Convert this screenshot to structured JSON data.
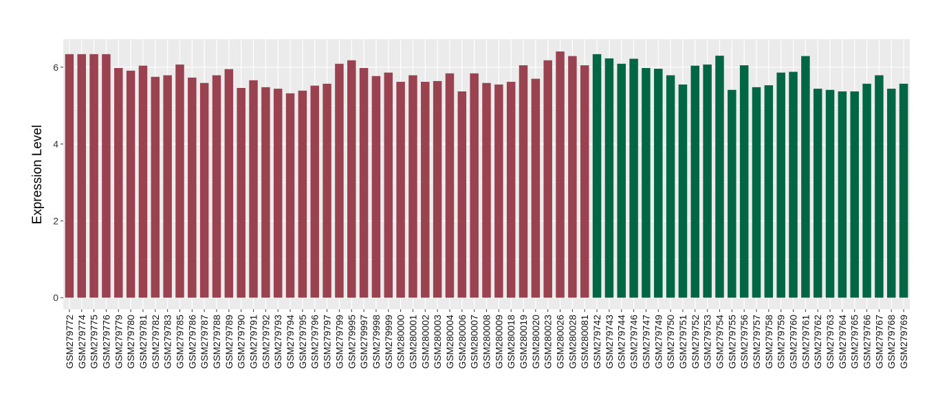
{
  "chart_data": {
    "type": "bar",
    "title": "",
    "xlabel": "",
    "ylabel": "Expression Level",
    "ylim": [
      -0.3,
      6.73
    ],
    "yticks": [
      0,
      2,
      4,
      6
    ],
    "grid": true,
    "legend": "none",
    "colors": {
      "group1": "#9B4250",
      "group2": "#006644",
      "panel": "#EBEBEB",
      "gridline": "#FFFFFF"
    },
    "categories": [
      "GSM279772",
      "GSM279774",
      "GSM279775",
      "GSM279776",
      "GSM279779",
      "GSM279780",
      "GSM279781",
      "GSM279782",
      "GSM279783",
      "GSM279785",
      "GSM279786",
      "GSM279787",
      "GSM279788",
      "GSM279789",
      "GSM279790",
      "GSM279791",
      "GSM279792",
      "GSM279793",
      "GSM279794",
      "GSM279795",
      "GSM279796",
      "GSM279797",
      "GSM279799",
      "GSM279995",
      "GSM279997",
      "GSM279998",
      "GSM279999",
      "GSM280000",
      "GSM280001",
      "GSM280002",
      "GSM280003",
      "GSM280004",
      "GSM280006",
      "GSM280007",
      "GSM280008",
      "GSM280009",
      "GSM280018",
      "GSM280019",
      "GSM280020",
      "GSM280023",
      "GSM280026",
      "GSM280028",
      "GSM280081",
      "GSM279742",
      "GSM279743",
      "GSM279744",
      "GSM279746",
      "GSM279747",
      "GSM279749",
      "GSM279750",
      "GSM279751",
      "GSM279752",
      "GSM279753",
      "GSM279754",
      "GSM279755",
      "GSM279756",
      "GSM279757",
      "GSM279758",
      "GSM279759",
      "GSM279760",
      "GSM279761",
      "GSM279762",
      "GSM279763",
      "GSM279764",
      "GSM279765",
      "GSM279766",
      "GSM279767",
      "GSM279768",
      "GSM279769"
    ],
    "values": [
      6.34,
      6.34,
      6.34,
      6.34,
      5.98,
      5.91,
      6.04,
      5.75,
      5.79,
      6.07,
      5.73,
      5.59,
      5.79,
      5.95,
      5.46,
      5.66,
      5.48,
      5.44,
      5.32,
      5.39,
      5.52,
      5.57,
      6.09,
      6.18,
      5.98,
      5.77,
      5.86,
      5.62,
      5.79,
      5.62,
      5.64,
      5.84,
      5.37,
      5.84,
      5.59,
      5.55,
      5.62,
      6.05,
      5.7,
      6.18,
      6.41,
      6.29,
      6.05,
      6.34,
      6.23,
      6.09,
      6.22,
      5.98,
      5.96,
      5.79,
      5.55,
      6.04,
      6.07,
      6.3,
      5.41,
      6.05,
      5.48,
      5.53,
      5.86,
      5.88,
      6.29,
      5.44,
      5.41,
      5.37,
      5.37,
      5.57,
      5.79,
      5.44,
      5.57
    ],
    "groups": [
      "group1",
      "group1",
      "group1",
      "group1",
      "group1",
      "group1",
      "group1",
      "group1",
      "group1",
      "group1",
      "group1",
      "group1",
      "group1",
      "group1",
      "group1",
      "group1",
      "group1",
      "group1",
      "group1",
      "group1",
      "group1",
      "group1",
      "group1",
      "group1",
      "group1",
      "group1",
      "group1",
      "group1",
      "group1",
      "group1",
      "group1",
      "group1",
      "group1",
      "group1",
      "group1",
      "group1",
      "group1",
      "group1",
      "group1",
      "group1",
      "group1",
      "group1",
      "group1",
      "group2",
      "group2",
      "group2",
      "group2",
      "group2",
      "group2",
      "group2",
      "group2",
      "group2",
      "group2",
      "group2",
      "group2",
      "group2",
      "group2",
      "group2",
      "group2",
      "group2",
      "group2",
      "group2",
      "group2",
      "group2",
      "group2",
      "group2",
      "group2",
      "group2",
      "group2"
    ]
  }
}
